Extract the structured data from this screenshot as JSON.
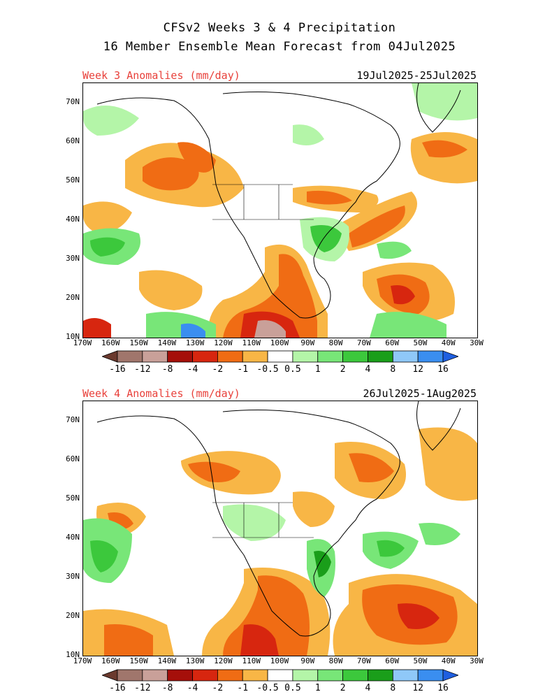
{
  "title_line1": "CFSv2 Weeks 3 & 4 Precipitation",
  "title_line2": "16 Member Ensemble Mean Forecast from 04Jul2025",
  "panels": [
    {
      "label": "Week 3 Anomalies (mm/day)",
      "dates": "19Jul2025-25Jul2025"
    },
    {
      "label": "Week 4 Anomalies (mm/day)",
      "dates": "26Jul2025-1Aug2025"
    }
  ],
  "lat_labels": [
    "70N",
    "60N",
    "50N",
    "40N",
    "30N",
    "20N",
    "10N"
  ],
  "lon_labels": [
    "170W",
    "160W",
    "150W",
    "140W",
    "130W",
    "120W",
    "110W",
    "100W",
    "90W",
    "80W",
    "70W",
    "60W",
    "50W",
    "40W",
    "30W"
  ],
  "colorbar": {
    "labels": [
      "-16",
      "-12",
      "-8",
      "-4",
      "-2",
      "-1",
      "-0.5",
      "0.5",
      "1",
      "2",
      "4",
      "8",
      "12",
      "16"
    ],
    "colors": [
      "#6b3a2e",
      "#a0766c",
      "#c9a099",
      "#a50f0a",
      "#d7260f",
      "#f06c14",
      "#f8b646",
      "#ffffff",
      "#b4f5a8",
      "#78e678",
      "#3cc83c",
      "#1a9e1a",
      "#8fc8f8",
      "#3a8ef0",
      "#1f5fe0"
    ]
  }
}
